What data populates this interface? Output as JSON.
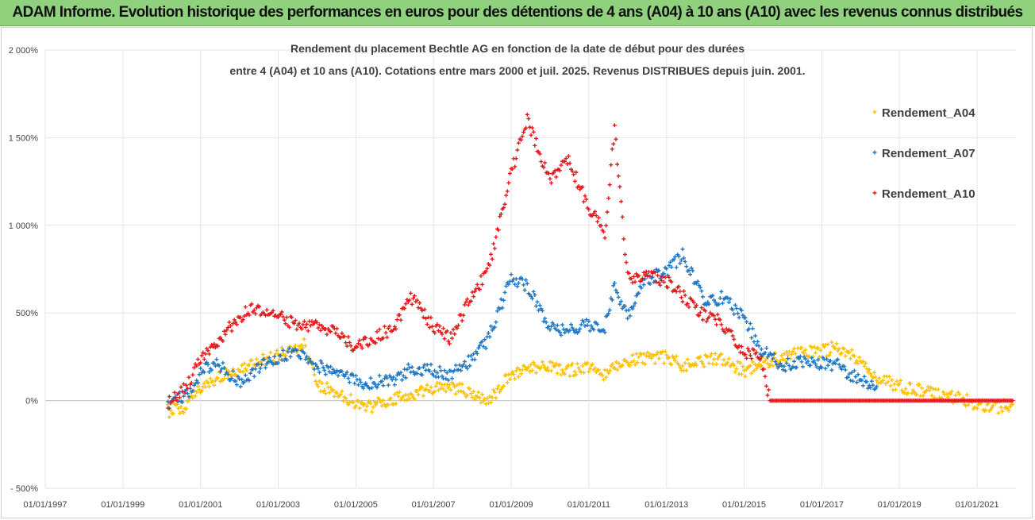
{
  "header": {
    "banner_text": "ADAM Informe. Evolution historique des performances en euros pour des détentions de 4 ans (A04) à 10 ans (A10) avec les revenus connus distribués"
  },
  "chart_data": {
    "type": "scatter",
    "title_line1": "Rendement du placement Bechtle AG en fonction de la date de début pour des durées",
    "title_line2": "entre 4 (A04) et 10 ans (A10). Cotations entre mars 2000 et juil. 2025.  Revenus DISTRIBUES depuis juin. 2001.",
    "xlabel": "",
    "ylabel": "",
    "x_range": [
      "1997-01-01",
      "2022-01-01"
    ],
    "ylim": [
      -500,
      2000
    ],
    "y_ticks": [
      -500,
      0,
      500,
      1000,
      1500,
      2000
    ],
    "y_tick_labels": [
      "- 500%",
      "0%",
      "500%",
      "1 000%",
      "1 500%",
      "2 000%"
    ],
    "x_tick_labels": [
      "01/01/1997",
      "01/01/1999",
      "01/01/2001",
      "01/01/2003",
      "01/01/2005",
      "01/01/2007",
      "01/01/2009",
      "01/01/2011",
      "01/01/2013",
      "01/01/2015",
      "01/01/2017",
      "01/01/2019",
      "01/01/2021"
    ],
    "grid": true,
    "legend_position": "right",
    "series": [
      {
        "name": "Rendement_A04",
        "color": "#ffc000",
        "x": [
          "2000-03",
          "2000-09",
          "2001-01",
          "2001-06",
          "2002-01",
          "2002-06",
          "2003-01",
          "2003-06",
          "2003-09",
          "2004-01",
          "2004-06",
          "2005-01",
          "2005-06",
          "2006-01",
          "2006-06",
          "2007-01",
          "2007-06",
          "2008-01",
          "2008-06",
          "2009-01",
          "2009-06",
          "2010-01",
          "2010-06",
          "2011-01",
          "2011-06",
          "2012-01",
          "2012-06",
          "2013-01",
          "2013-06",
          "2014-01",
          "2014-06",
          "2015-01",
          "2015-06",
          "2016-01",
          "2016-06",
          "2017-01",
          "2017-06",
          "2018-01",
          "2018-06",
          "2019-01",
          "2019-06",
          "2020-01",
          "2020-06",
          "2021-01",
          "2021-06",
          "2021-12"
        ],
        "values": [
          -60,
          -30,
          80,
          130,
          180,
          220,
          260,
          300,
          330,
          80,
          60,
          -20,
          -30,
          10,
          40,
          60,
          80,
          40,
          0,
          150,
          180,
          200,
          170,
          190,
          150,
          230,
          240,
          250,
          200,
          230,
          240,
          170,
          210,
          250,
          270,
          280,
          310,
          220,
          130,
          80,
          60,
          40,
          20,
          -20,
          -40,
          -20
        ]
      },
      {
        "name": "Rendement_A07",
        "color": "#1f77c4",
        "x": [
          "2000-03",
          "2000-09",
          "2001-01",
          "2001-06",
          "2002-01",
          "2002-06",
          "2003-01",
          "2003-06",
          "2004-01",
          "2004-06",
          "2005-01",
          "2005-06",
          "2006-01",
          "2006-06",
          "2007-01",
          "2007-06",
          "2008-01",
          "2008-06",
          "2009-01",
          "2009-06",
          "2010-01",
          "2010-06",
          "2011-01",
          "2011-06",
          "2011-09",
          "2012-01",
          "2012-06",
          "2013-01",
          "2013-06",
          "2014-01",
          "2014-06",
          "2015-01",
          "2015-06",
          "2016-01",
          "2016-06",
          "2017-01",
          "2017-06",
          "2018-01",
          "2018-06"
        ],
        "values": [
          -30,
          40,
          160,
          220,
          100,
          180,
          250,
          280,
          200,
          160,
          110,
          100,
          120,
          180,
          170,
          140,
          240,
          350,
          700,
          650,
          420,
          400,
          430,
          420,
          660,
          470,
          680,
          740,
          830,
          560,
          590,
          480,
          290,
          200,
          220,
          210,
          200,
          110,
          80
        ]
      },
      {
        "name": "Rendement_A10",
        "color": "#e31a1c",
        "x": [
          "2000-03",
          "2000-09",
          "2001-01",
          "2001-06",
          "2002-01",
          "2002-06",
          "2003-01",
          "2003-06",
          "2004-01",
          "2004-06",
          "2005-01",
          "2005-06",
          "2006-01",
          "2006-06",
          "2007-01",
          "2007-06",
          "2008-01",
          "2008-06",
          "2009-01",
          "2009-06",
          "2010-01",
          "2010-06",
          "2011-01",
          "2011-06",
          "2011-09",
          "2012-01",
          "2012-06",
          "2013-01",
          "2013-06",
          "2014-01",
          "2014-06",
          "2015-01",
          "2015-06",
          "2015-09",
          "2016-01",
          "2017-01",
          "2018-01",
          "2019-01",
          "2020-01",
          "2021-01",
          "2021-12"
        ],
        "values": [
          -20,
          80,
          250,
          330,
          480,
          530,
          500,
          430,
          420,
          400,
          300,
          350,
          420,
          590,
          420,
          350,
          600,
          750,
          1300,
          1600,
          1250,
          1400,
          1100,
          950,
          1550,
          700,
          720,
          680,
          600,
          480,
          450,
          280,
          260,
          0,
          0,
          0,
          0,
          0,
          0,
          0,
          0
        ]
      }
    ]
  }
}
